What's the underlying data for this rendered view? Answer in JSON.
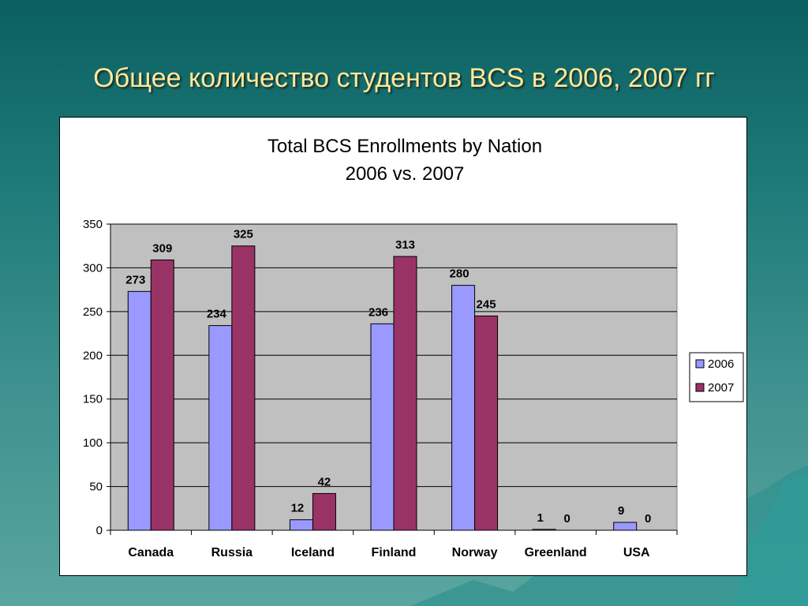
{
  "slide": {
    "title": "Общее количество студентов BCS в 2006, 2007 гг"
  },
  "colors": {
    "series_2006": "#9999ff",
    "series_2007": "#993366",
    "plot_bg": "#c0c0c0",
    "title_text": "#ffe99a"
  },
  "chart_data": {
    "type": "bar",
    "title_line1": "Total BCS Enrollments by Nation",
    "title_line2": "2006 vs. 2007",
    "categories": [
      "Canada",
      "Russia",
      "Iceland",
      "Finland",
      "Norway",
      "Greenland",
      "USA"
    ],
    "series": [
      {
        "name": "2006",
        "values": [
          273,
          234,
          12,
          236,
          280,
          1,
          9
        ]
      },
      {
        "name": "2007",
        "values": [
          309,
          325,
          42,
          313,
          245,
          0,
          0
        ]
      }
    ],
    "ylim": [
      0,
      350
    ],
    "yticks": [
      0,
      50,
      100,
      150,
      200,
      250,
      300,
      350
    ],
    "grid": true,
    "legend": "right"
  }
}
